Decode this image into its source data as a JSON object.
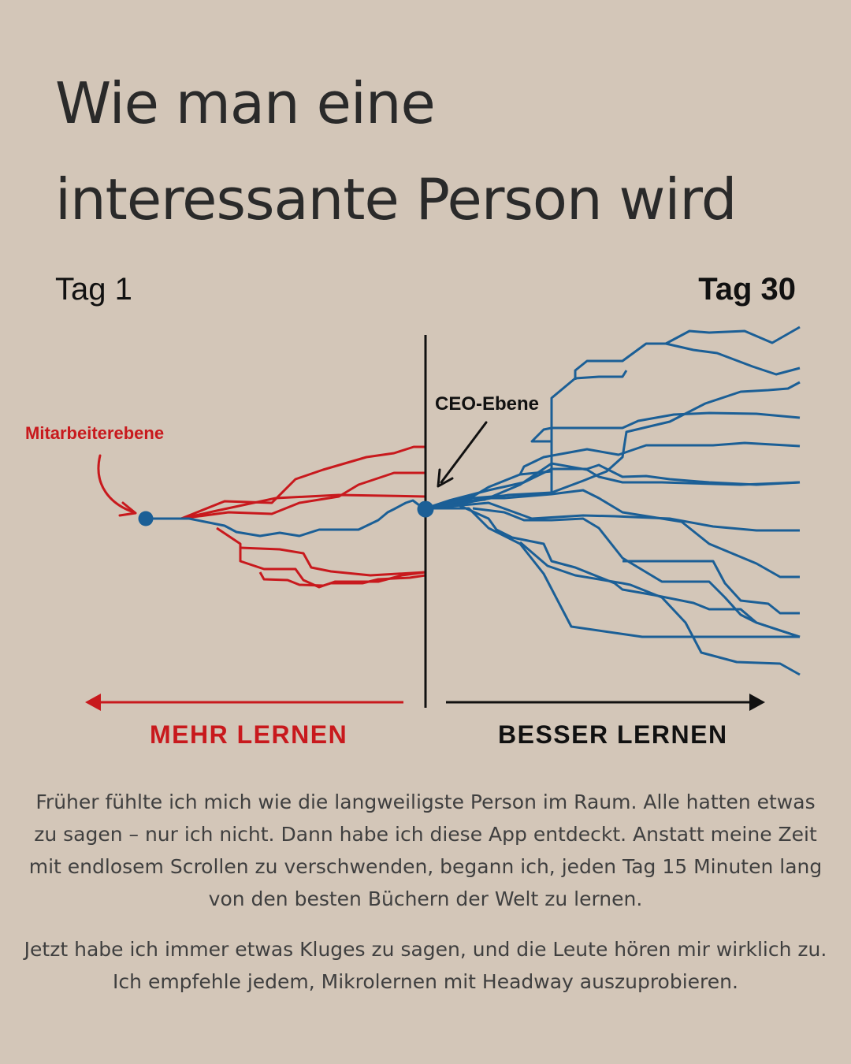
{
  "title_lines": [
    "Wie man eine",
    "interessante Person wird"
  ],
  "day_start": "Tag 1",
  "day_end": "Tag 30",
  "diagram": {
    "employee_label": "Mitarbeiterebene",
    "ceo_label": "CEO-Ebene",
    "left_arrow_label": "MEHR LERNEN",
    "right_arrow_label": "BESSER LERNEN"
  },
  "colors": {
    "background": "#d3c6b8",
    "red": "#c8191d",
    "blue": "#1b5f96",
    "black": "#111111"
  },
  "paragraphs": [
    "Früher fühlte ich mich wie die langweiligste Person im Raum. Alle hatten etwas zu sagen – nur ich nicht. Dann habe ich diese App entdeckt. Anstatt meine Zeit mit endlosem Scrollen zu verschwenden, begann ich, jeden Tag 15 Minuten lang von den besten Büchern der Welt zu lernen.",
    "Jetzt habe ich immer etwas Kluges zu sagen, und die Leute hören mir wirklich zu. Ich empfehle jedem, Mikrolernen mit Headway auszuprobieren."
  ]
}
